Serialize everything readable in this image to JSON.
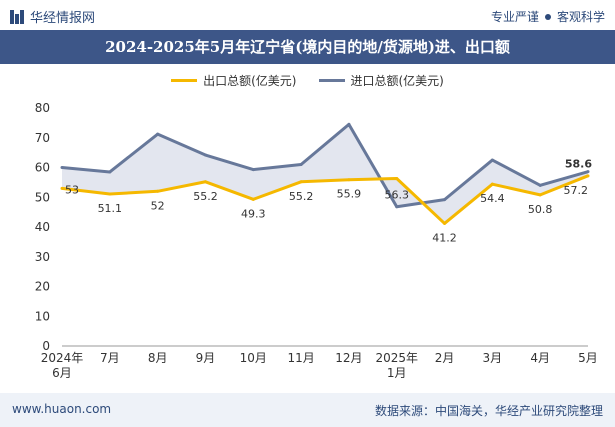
{
  "header": {
    "brand": "华经情报网",
    "slogan_left": "专业严谨",
    "slogan_right": "客观科学"
  },
  "title": "2024-2025年5月年辽宁省(境内目的地/货源地)进、出口额",
  "footer": {
    "website": "www.huaon.com",
    "source": "数据来源：中国海关，华经产业研究院整理"
  },
  "colors": {
    "export": "#f5b800",
    "import": "#67789a",
    "fill": "#d9deea",
    "header_bg": "#3d5688"
  },
  "chart_data": {
    "type": "line",
    "title": "2024-2025年5月年辽宁省(境内目的地/货源地)进、出口额",
    "categories": [
      "2024年\n6月",
      "7月",
      "8月",
      "9月",
      "10月",
      "11月",
      "12月",
      "2025年\n1月",
      "2月",
      "3月",
      "4月",
      "5月"
    ],
    "series": [
      {
        "name": "出口总额(亿美元)",
        "values": [
          53,
          51.1,
          52,
          55.2,
          49.3,
          55.2,
          55.9,
          56.3,
          41.2,
          54.4,
          50.8,
          57.2
        ]
      },
      {
        "name": "进口总额(亿美元)",
        "values": [
          60,
          58.5,
          71.2,
          64.2,
          59.3,
          61,
          74.5,
          46.8,
          49.2,
          62.5,
          54,
          58.6
        ]
      }
    ],
    "ylim": [
      0,
      80
    ],
    "yticks": [
      0,
      10,
      20,
      30,
      40,
      50,
      60,
      70,
      80
    ],
    "data_labels": {
      "export": [
        "53",
        "51.1",
        "52",
        "55.2",
        "49.3",
        "55.2",
        "55.9",
        "56.3",
        "41.2",
        "54.4",
        "50.8",
        "57.2"
      ],
      "import_last": "58.6"
    },
    "legend_position": "top-center",
    "grid": false
  }
}
